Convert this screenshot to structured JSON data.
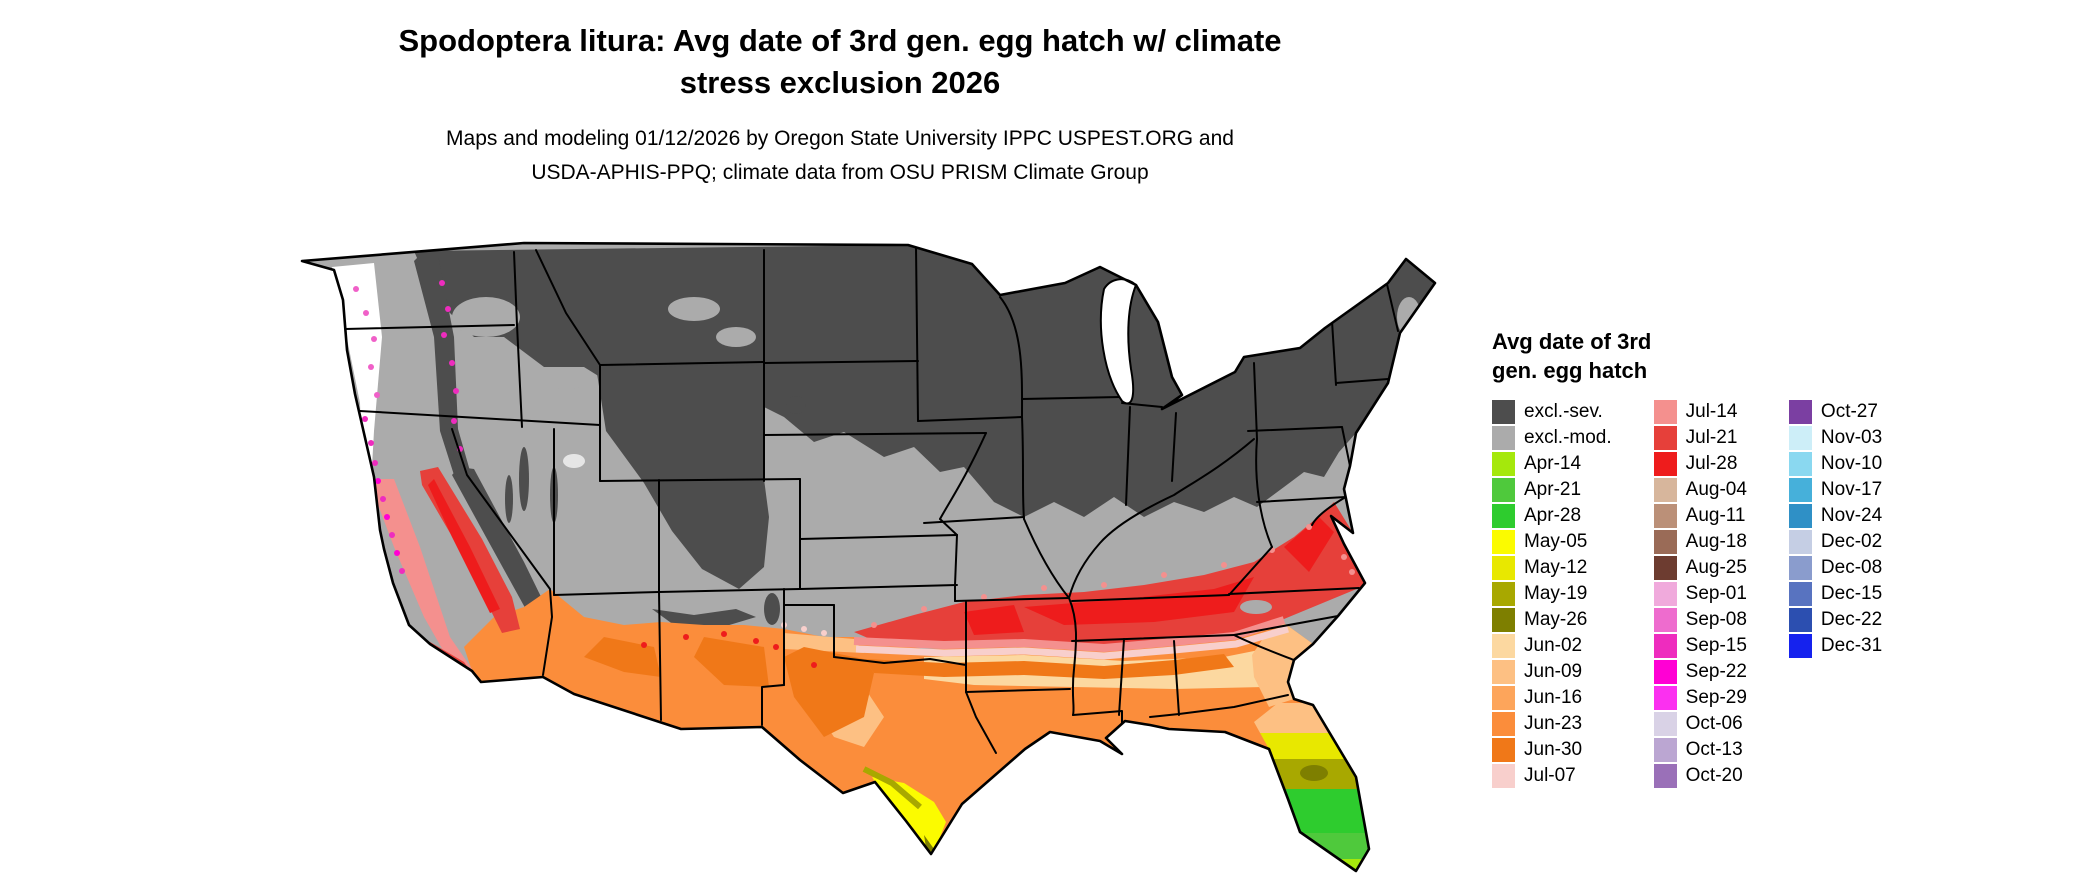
{
  "title": {
    "line1": "Spodoptera litura: Avg date of 3rd gen. egg hatch w/ climate",
    "line2": "stress exclusion 2026"
  },
  "subtitle": {
    "line1": "Maps and modeling 01/12/2026 by Oregon State University IPPC USPEST.ORG and",
    "line2": "USDA-APHIS-PPQ; climate data from OSU PRISM Climate Group"
  },
  "legend": {
    "title_line1": "Avg date of 3rd",
    "title_line2": "gen. egg hatch",
    "columns": [
      {
        "entries": [
          {
            "label": "excl.-sev.",
            "color": "#4d4d4d"
          },
          {
            "label": "excl.-mod.",
            "color": "#ababab"
          },
          {
            "label": "Apr-14",
            "color": "#a5e80c"
          },
          {
            "label": "Apr-21",
            "color": "#4fc93c"
          },
          {
            "label": "Apr-28",
            "color": "#2ecc2e"
          },
          {
            "label": "May-05",
            "color": "#fbfb00"
          },
          {
            "label": "May-12",
            "color": "#e8e800"
          },
          {
            "label": "May-19",
            "color": "#a8a800"
          },
          {
            "label": "May-26",
            "color": "#7e7f00"
          },
          {
            "label": "Jun-02",
            "color": "#fcd8a0"
          },
          {
            "label": "Jun-09",
            "color": "#fdc083"
          },
          {
            "label": "Jun-16",
            "color": "#fda55b"
          },
          {
            "label": "Jun-23",
            "color": "#fb8d3b"
          },
          {
            "label": "Jun-30",
            "color": "#f07818"
          },
          {
            "label": "Jul-07",
            "color": "#f8cfcc"
          }
        ]
      },
      {
        "entries": [
          {
            "label": "Jul-14",
            "color": "#f4908e"
          },
          {
            "label": "Jul-21",
            "color": "#e6403a"
          },
          {
            "label": "Jul-28",
            "color": "#ee1c1c"
          },
          {
            "label": "Aug-04",
            "color": "#d7b69c"
          },
          {
            "label": "Aug-11",
            "color": "#bb9078"
          },
          {
            "label": "Aug-18",
            "color": "#9a6b57"
          },
          {
            "label": "Aug-25",
            "color": "#6d3c30"
          },
          {
            "label": "Sep-01",
            "color": "#f0aadc"
          },
          {
            "label": "Sep-08",
            "color": "#ee6cce"
          },
          {
            "label": "Sep-15",
            "color": "#ee2cbe"
          },
          {
            "label": "Sep-22",
            "color": "#ff00d4"
          },
          {
            "label": "Sep-29",
            "color": "#fb30f0"
          },
          {
            "label": "Oct-06",
            "color": "#d9d2e6"
          },
          {
            "label": "Oct-13",
            "color": "#bba6d2"
          },
          {
            "label": "Oct-20",
            "color": "#9a70b8"
          }
        ]
      },
      {
        "entries": [
          {
            "label": "Oct-27",
            "color": "#7b3fa2"
          },
          {
            "label": "Nov-03",
            "color": "#cdeef8"
          },
          {
            "label": "Nov-10",
            "color": "#8ad8f0"
          },
          {
            "label": "Nov-17",
            "color": "#46b0da"
          },
          {
            "label": "Nov-24",
            "color": "#2f90c6"
          },
          {
            "label": "Dec-02",
            "color": "#c5cee4"
          },
          {
            "label": "Dec-08",
            "color": "#8a9ccd"
          },
          {
            "label": "Dec-15",
            "color": "#5873c0"
          },
          {
            "label": "Dec-22",
            "color": "#2c4fb0"
          },
          {
            "label": "Dec-31",
            "color": "#1522ee"
          }
        ]
      }
    ]
  },
  "map": {
    "region": "Continental United States",
    "exclusion_severe_color": "#4d4d4d",
    "exclusion_moderate_color": "#ababab"
  }
}
